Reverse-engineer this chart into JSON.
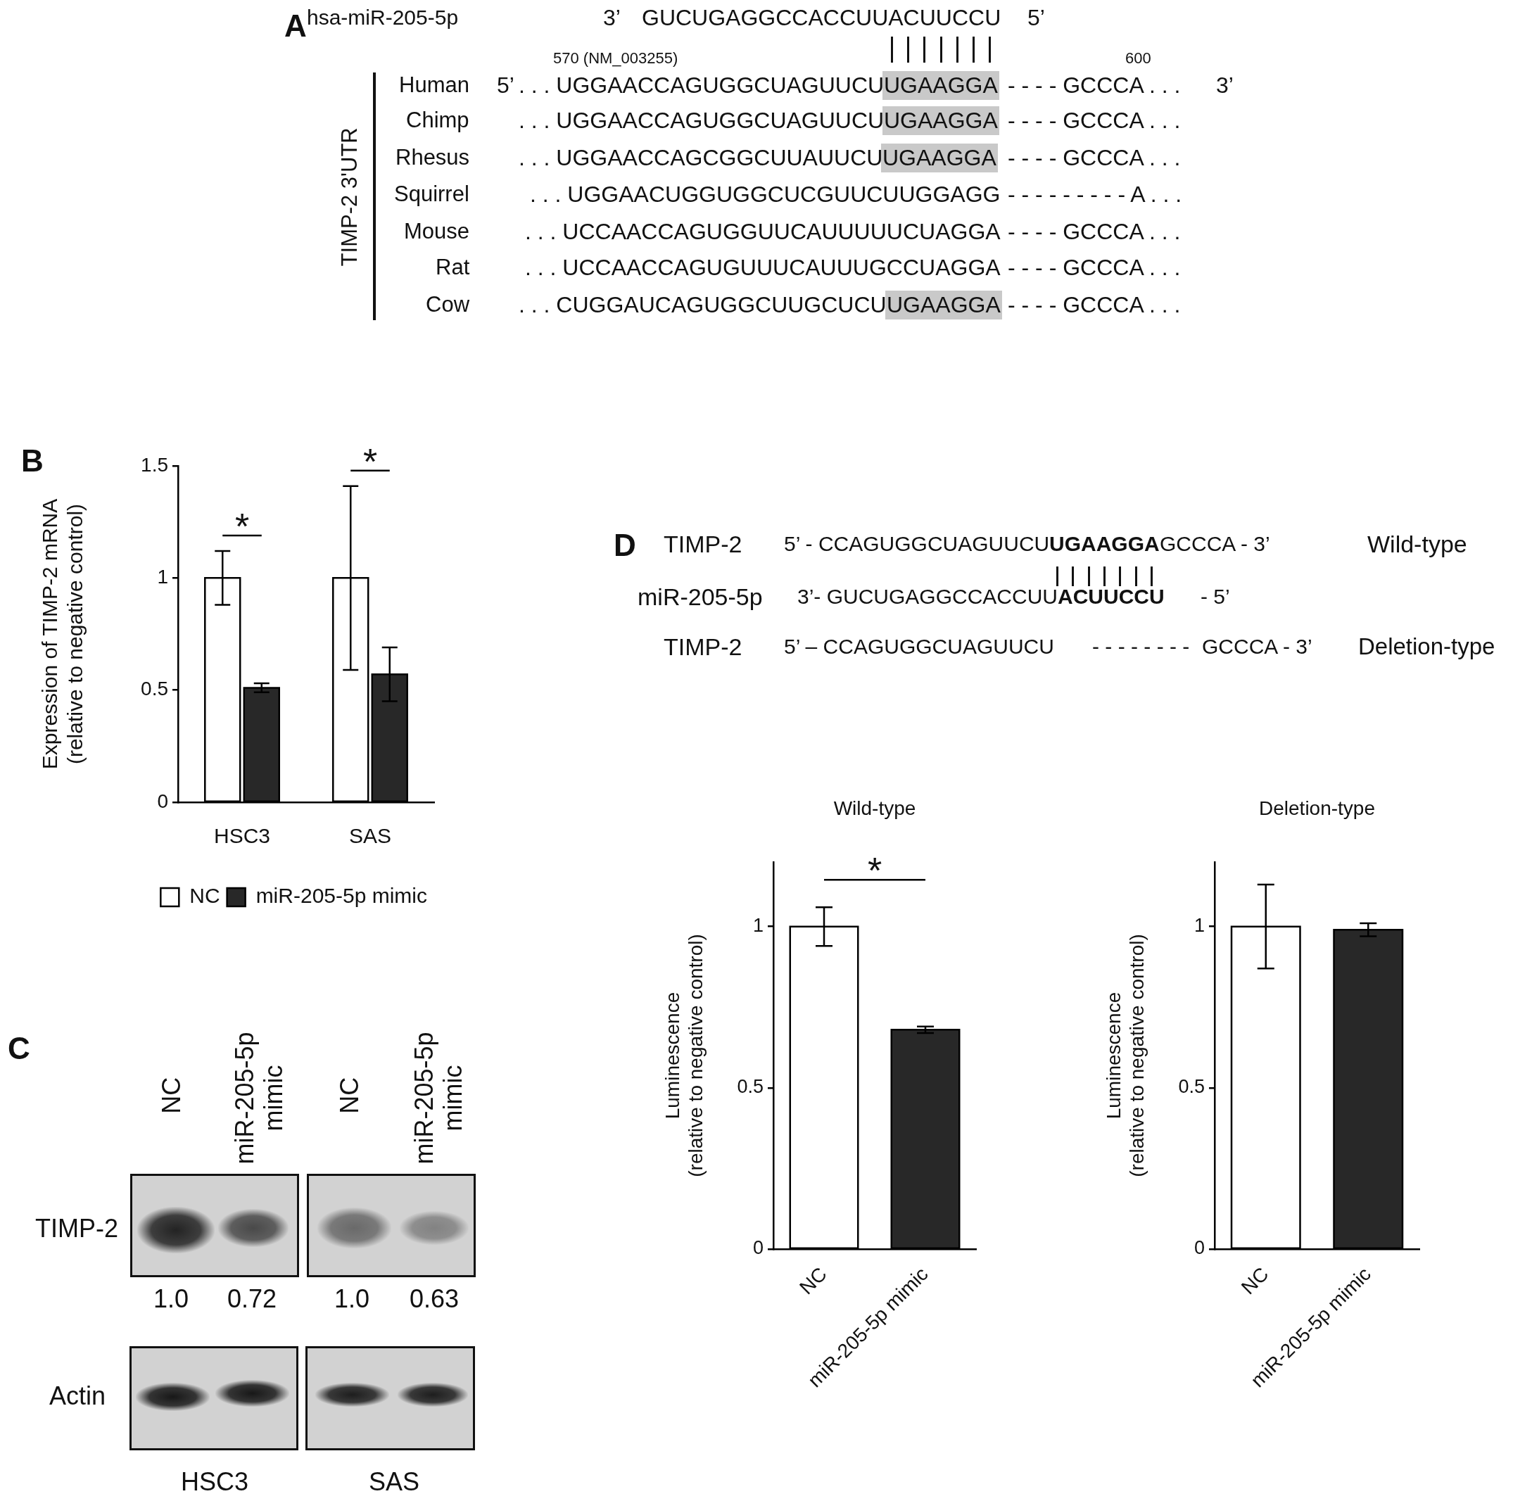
{
  "chart_data": [
    {
      "type": "other",
      "annotations": [
        "A",
        "hsa-miR-205-5p",
        "3’",
        "GUCUGAGGCCACCUUACUUCCU",
        "5’",
        "570 (NM_003255)",
        "600",
        "TIMP-2 3'UTR",
        "Human",
        "5’",
        ". . . UGGAACCAGUGGCUAGUUCU",
        "UGAAGGA",
        "- - - - GCCCA . . .",
        "3’",
        "Chimp",
        ". . . UGGAACCAGUGGCUAGUUCU",
        "UGAAGGA",
        "- - - - GCCCA . . .",
        "Rhesus",
        ". . . UGGAACCAGCGGCUUAUUCU",
        "UGAAGGA",
        "- - - - GCCCA . . .",
        "Squirrel",
        ". . . UGGAACUGGUGGCUCGUUCUUGGAGG",
        "- - - - - - - - - A . . .",
        "Mouse",
        ". . . UCCAACCAGUGGUUCAUUUUUCUAGGA",
        "- - - - GCCCA . . .",
        "Rat",
        ". . . UCCAACCAGUGUUUCAUUUGCCUAGGA",
        "- - - - GCCCA . . .",
        "Cow",
        ". . . CUGGAUCAGUGGCUUGCUCU",
        "UGAAGGA",
        "- - - - GCCCA . . ."
      ]
    },
    {
      "type": "bar",
      "annotations": [
        "B",
        "*",
        "*"
      ],
      "categories": [
        "HSC3",
        "SAS"
      ],
      "ylabel": "Expression of TIMP-2 mRNA\n(relative to negative control)",
      "series": [
        {
          "name": "NC",
          "color": "#ffffff",
          "values": [
            1,
            1
          ],
          "errors": [
            0.12,
            0.41
          ]
        },
        {
          "name": "miR-205-5p mimic",
          "color": "#282828",
          "values": [
            0.51,
            0.57
          ],
          "errors": [
            0.02,
            0.12
          ]
        }
      ],
      "ylim": [
        0,
        1.5
      ],
      "yticks": [
        0,
        0.5,
        1,
        1.5
      ],
      "legend": "bottom"
    },
    {
      "type": "other",
      "annotations": [
        "C",
        "NC",
        "miR-205-5p\nmimic",
        "NC",
        "miR-205-5p\nmimic",
        "TIMP-2",
        "1.0",
        "0.72",
        "1.0",
        "0.63",
        "Actin",
        "HSC3",
        "SAS"
      ]
    },
    {
      "type": "other",
      "annotations": [
        "D",
        "TIMP-2",
        "5’ - CCAGUGGCUAGUUCU",
        "UGAAGGA",
        "GCCCA - 3’",
        "Wild-type",
        "miR-205-5p",
        "3’- GUCUGAGGCCACCUU",
        "ACUUCCU",
        "- 5’",
        "TIMP-2",
        "5’ – CCAGUGGCUAGUUCU",
        "- - - - - - - -",
        "GCCCA - 3’",
        "Deletion-type"
      ]
    },
    {
      "type": "bar",
      "title": "Wild-type",
      "annotations": [
        "*"
      ],
      "categories": [
        "NC",
        "miR-205-5p mimic"
      ],
      "ylabel": "Luminescence\n(relative to negative control)",
      "values": [
        1,
        0.68
      ],
      "errors": [
        0.06,
        0.01
      ],
      "colors": [
        "#ffffff",
        "#282828"
      ],
      "ylim": [
        0,
        1.2
      ],
      "yticks": [
        0,
        0.5,
        1
      ]
    },
    {
      "type": "bar",
      "title": "Deletion-type",
      "categories": [
        "NC",
        "miR-205-5p mimic"
      ],
      "ylabel": "Luminescence\n(relative to negative control)",
      "values": [
        1,
        0.99
      ],
      "errors": [
        0.13,
        0.02
      ],
      "colors": [
        "#ffffff",
        "#282828"
      ],
      "ylim": [
        0,
        1.2
      ],
      "yticks": [
        0,
        0.5,
        1
      ]
    }
  ]
}
